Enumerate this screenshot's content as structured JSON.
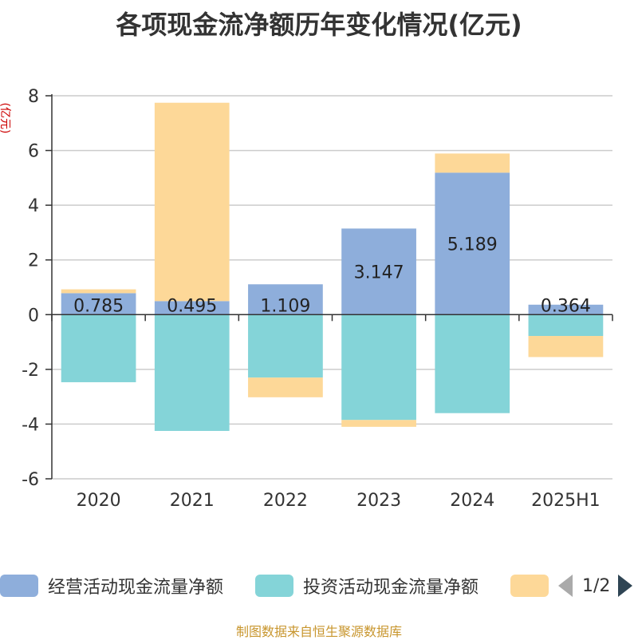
{
  "chart_data": {
    "type": "bar",
    "stacked": true,
    "title": "各项现金流净额历年变化情况(亿元)",
    "ylabel": "(亿元)",
    "xlabel": "",
    "categories": [
      "2020",
      "2021",
      "2022",
      "2023",
      "2024",
      "2025H1"
    ],
    "ylim": [
      -6,
      8
    ],
    "yticks": [
      8,
      6,
      4,
      2,
      0,
      -2,
      -4,
      -6
    ],
    "grid": true,
    "legend_position": "bottom",
    "series": [
      {
        "name": "经营活动现金流量净额",
        "color": "#8eaedb",
        "values": [
          0.785,
          0.495,
          1.109,
          3.147,
          5.189,
          0.364
        ],
        "labels": [
          "0.785",
          "0.495",
          "1.109",
          "3.147",
          "5.189",
          "0.364"
        ]
      },
      {
        "name": "投资活动现金流量净额",
        "color": "#84d4d8",
        "values": [
          -2.47,
          -4.25,
          -2.3,
          -3.85,
          -3.6,
          -0.78
        ]
      },
      {
        "name": "",
        "color": "#fdd898",
        "values": [
          0.14,
          7.25,
          -0.72,
          -0.25,
          0.7,
          -0.77
        ]
      }
    ]
  },
  "legend": {
    "page": "1/2"
  },
  "footer": {
    "source": "制图数据来自恒生聚源数据库"
  }
}
